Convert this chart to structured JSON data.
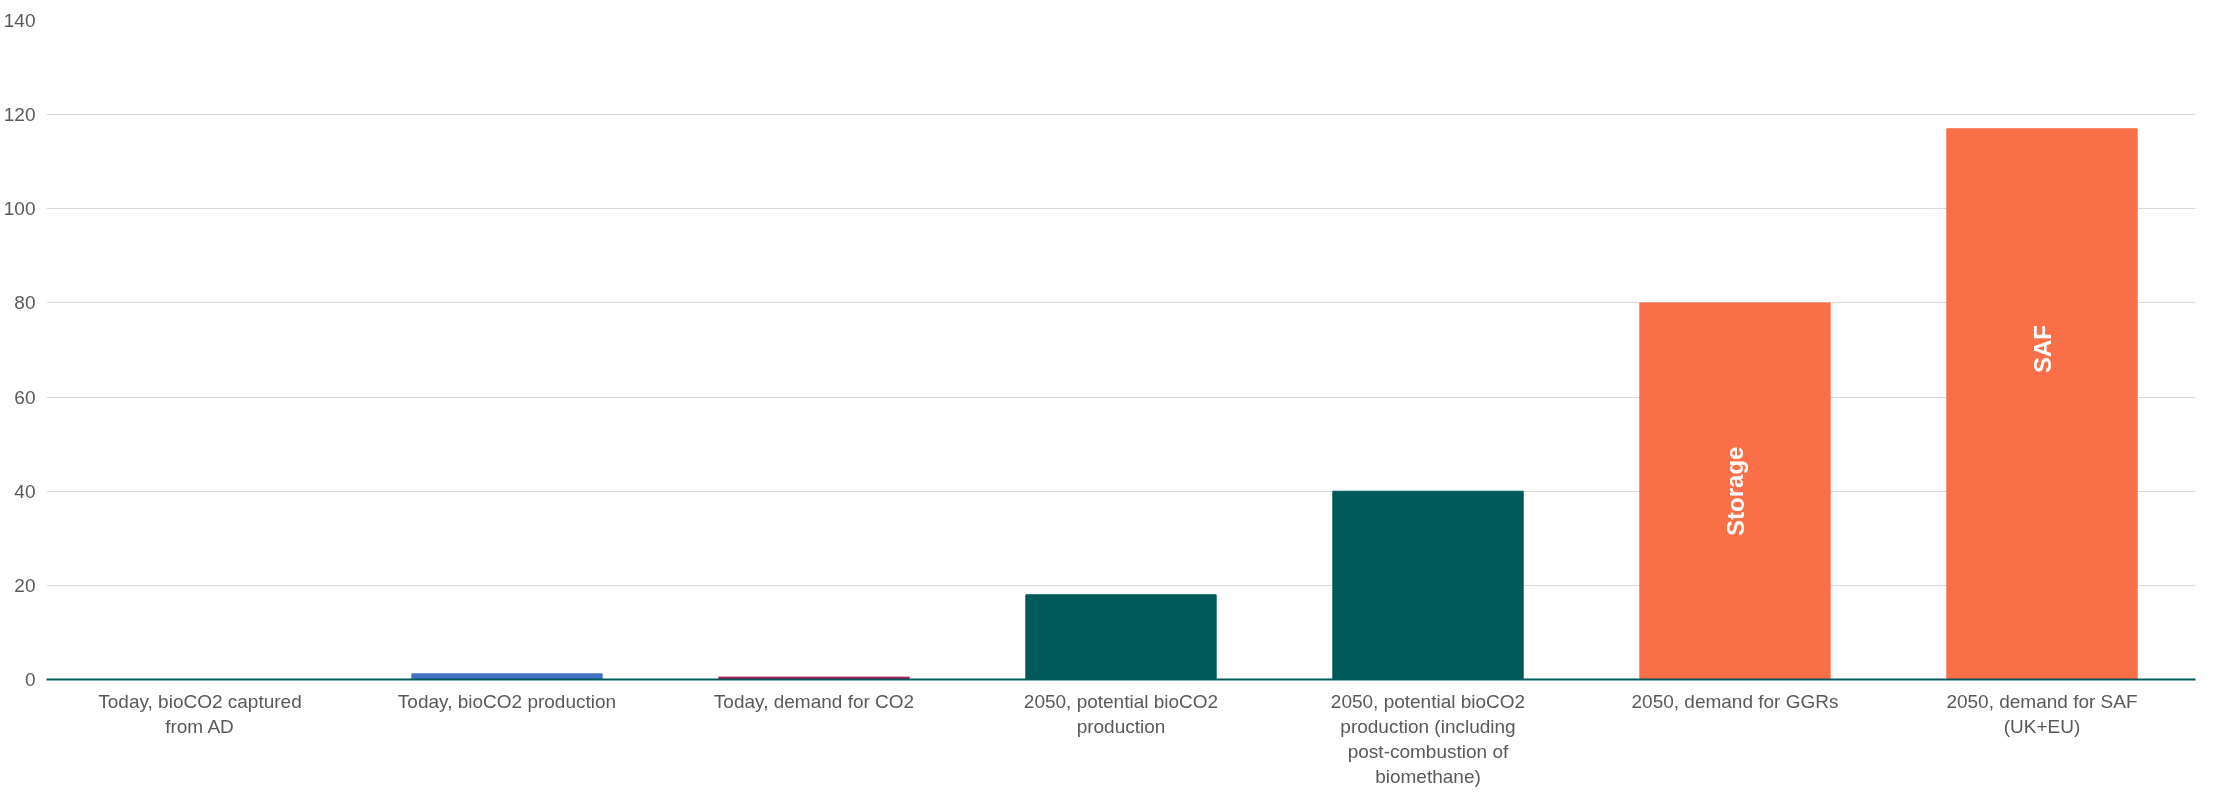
{
  "chart_data": {
    "type": "bar",
    "categories": [
      "Today, bioCO2 captured from AD",
      "Today, bioCO2 production",
      "Today, demand for CO2",
      "2050, potential bioCO2 production",
      "2050, potential bioCO2 production (including post-combustion of biomethane)",
      "2050, demand for GGRs",
      "2050, demand for SAF (UK+EU)"
    ],
    "values": [
      0,
      1.2,
      0.5,
      18,
      40,
      80,
      117
    ],
    "colors": [
      "#4472c4",
      "#4472c4",
      "#a50f4f",
      "#005a5a",
      "#005a5a",
      "#f96f47",
      "#f96f47"
    ],
    "ylim": [
      0,
      140
    ],
    "yticks": [
      0,
      20,
      40,
      60,
      80,
      100,
      120,
      140
    ],
    "grid": "y",
    "annotations": [
      "Storage",
      "SAF"
    ]
  }
}
